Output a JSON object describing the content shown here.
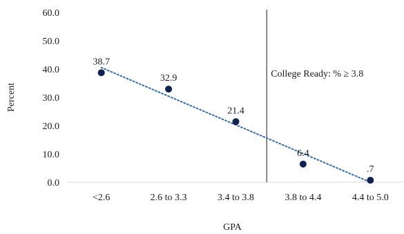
{
  "chart_data": {
    "type": "scatter",
    "title": "",
    "xlabel": "GPA",
    "ylabel": "Percent",
    "categories": [
      "<2.6",
      "2.6 to 3.3",
      "3.4 to 3.8",
      "3.8 to 4.4",
      "4.4 to 5.0"
    ],
    "values": [
      38.7,
      32.9,
      21.4,
      6.4,
      0.7
    ],
    "data_labels": [
      "38.7",
      "32.9",
      "21.4",
      "6.4",
      ".7"
    ],
    "ylim": [
      0,
      60
    ],
    "y_ticks": [
      "0.0",
      "10.0",
      "20.0",
      "30.0",
      "40.0",
      "50.0",
      "60.0"
    ],
    "grid": false,
    "legend": "none",
    "trendline": {
      "type": "linear",
      "style": "dotted",
      "color": "#2e6db4"
    },
    "marker_color": "#0d2250",
    "annotation": {
      "text": "College Ready: % ≥ 3.8",
      "divider_after_category": "3.4 to 3.8"
    }
  }
}
